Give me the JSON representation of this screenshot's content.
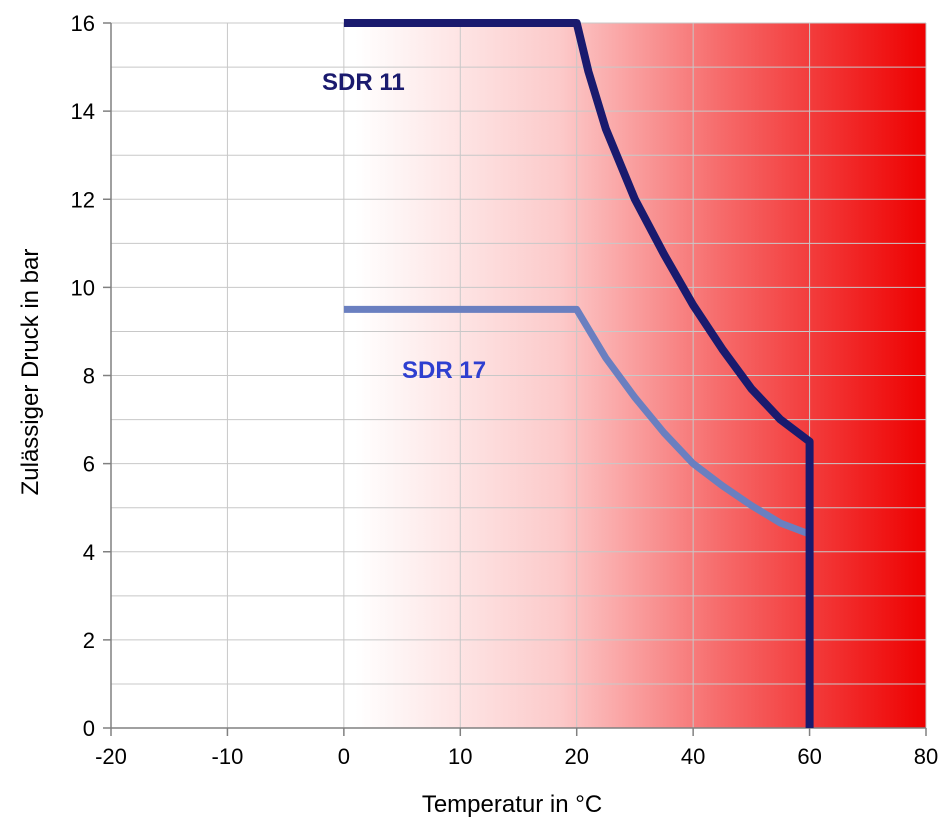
{
  "chart_data": {
    "type": "line",
    "xlabel": "Temperatur in °C",
    "ylabel": "Zulässiger Druck in bar",
    "xlim": [
      -20,
      80
    ],
    "ylim": [
      0,
      16
    ],
    "xticks": [
      "-20",
      "-10",
      "0",
      "10",
      "20",
      "40",
      "60",
      "80"
    ],
    "xtick_values": [
      -20,
      -10,
      0,
      10,
      20,
      40,
      60,
      80
    ],
    "yticks": [
      "0",
      "2",
      "4",
      "6",
      "8",
      "10",
      "12",
      "14",
      "16"
    ],
    "ytick_values": [
      0,
      2,
      4,
      6,
      8,
      10,
      12,
      14,
      16
    ],
    "x_axis_scale": "piecewise: -20..20 in steps of 10, 20..80 in steps of 20",
    "grid": true,
    "background": "white-to-red horizontal gradient",
    "colors": {
      "gradient_start": "#ffffff",
      "gradient_end": "#ee0000",
      "sdr11": "#1a1a6e",
      "sdr17": "#6a7fc0",
      "sdr11_label": "#1a1a6e",
      "sdr17_label": "#2e3fd0"
    },
    "series": [
      {
        "name": "SDR 11",
        "x": [
          0,
          20,
          22,
          25,
          30,
          35,
          40,
          45,
          50,
          55,
          60,
          60
        ],
        "y": [
          16,
          16,
          14.9,
          13.6,
          12.0,
          10.75,
          9.6,
          8.6,
          7.7,
          7.0,
          6.5,
          0
        ]
      },
      {
        "name": "SDR 17",
        "x": [
          0,
          20,
          25,
          30,
          35,
          40,
          45,
          50,
          55,
          60
        ],
        "y": [
          9.5,
          9.5,
          8.4,
          7.5,
          6.7,
          6.0,
          5.5,
          5.05,
          4.65,
          4.4
        ]
      }
    ]
  }
}
